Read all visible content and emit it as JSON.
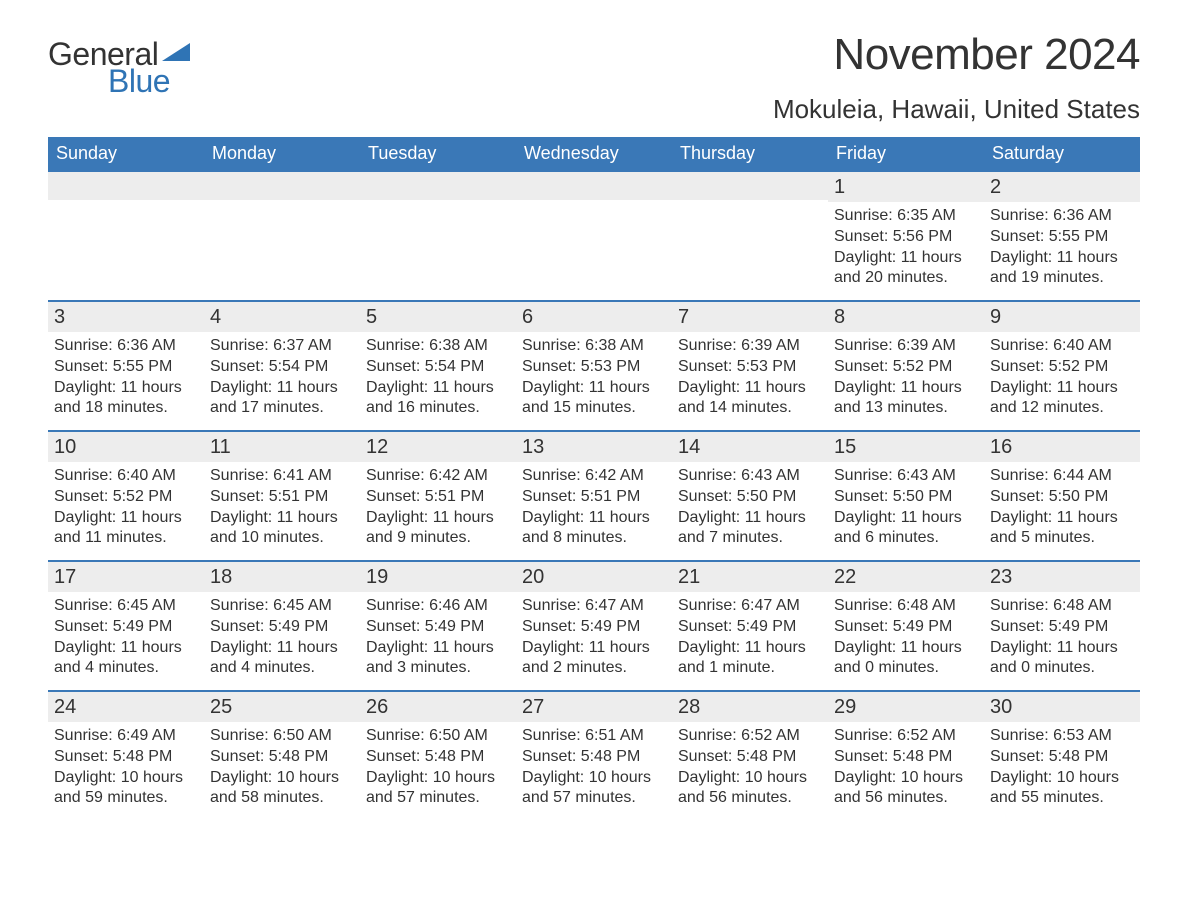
{
  "logo": {
    "word1": "General",
    "word2": "Blue",
    "tri_color": "#2f74b5",
    "text_color": "#333333",
    "blue_color": "#2f74b5"
  },
  "title": "November 2024",
  "location": "Mokuleia, Hawaii, United States",
  "colors": {
    "header_bg": "#3a78b7",
    "header_text": "#ffffff",
    "daynum_bg": "#ededed",
    "body_text": "#333333",
    "row_border": "#3a78b7",
    "background": "#ffffff"
  },
  "weekdays": [
    "Sunday",
    "Monday",
    "Tuesday",
    "Wednesday",
    "Thursday",
    "Friday",
    "Saturday"
  ],
  "weeks": [
    [
      {
        "day": "",
        "sunrise": "",
        "sunset": "",
        "daylight": ""
      },
      {
        "day": "",
        "sunrise": "",
        "sunset": "",
        "daylight": ""
      },
      {
        "day": "",
        "sunrise": "",
        "sunset": "",
        "daylight": ""
      },
      {
        "day": "",
        "sunrise": "",
        "sunset": "",
        "daylight": ""
      },
      {
        "day": "",
        "sunrise": "",
        "sunset": "",
        "daylight": ""
      },
      {
        "day": "1",
        "sunrise": "Sunrise: 6:35 AM",
        "sunset": "Sunset: 5:56 PM",
        "daylight": "Daylight: 11 hours and 20 minutes."
      },
      {
        "day": "2",
        "sunrise": "Sunrise: 6:36 AM",
        "sunset": "Sunset: 5:55 PM",
        "daylight": "Daylight: 11 hours and 19 minutes."
      }
    ],
    [
      {
        "day": "3",
        "sunrise": "Sunrise: 6:36 AM",
        "sunset": "Sunset: 5:55 PM",
        "daylight": "Daylight: 11 hours and 18 minutes."
      },
      {
        "day": "4",
        "sunrise": "Sunrise: 6:37 AM",
        "sunset": "Sunset: 5:54 PM",
        "daylight": "Daylight: 11 hours and 17 minutes."
      },
      {
        "day": "5",
        "sunrise": "Sunrise: 6:38 AM",
        "sunset": "Sunset: 5:54 PM",
        "daylight": "Daylight: 11 hours and 16 minutes."
      },
      {
        "day": "6",
        "sunrise": "Sunrise: 6:38 AM",
        "sunset": "Sunset: 5:53 PM",
        "daylight": "Daylight: 11 hours and 15 minutes."
      },
      {
        "day": "7",
        "sunrise": "Sunrise: 6:39 AM",
        "sunset": "Sunset: 5:53 PM",
        "daylight": "Daylight: 11 hours and 14 minutes."
      },
      {
        "day": "8",
        "sunrise": "Sunrise: 6:39 AM",
        "sunset": "Sunset: 5:52 PM",
        "daylight": "Daylight: 11 hours and 13 minutes."
      },
      {
        "day": "9",
        "sunrise": "Sunrise: 6:40 AM",
        "sunset": "Sunset: 5:52 PM",
        "daylight": "Daylight: 11 hours and 12 minutes."
      }
    ],
    [
      {
        "day": "10",
        "sunrise": "Sunrise: 6:40 AM",
        "sunset": "Sunset: 5:52 PM",
        "daylight": "Daylight: 11 hours and 11 minutes."
      },
      {
        "day": "11",
        "sunrise": "Sunrise: 6:41 AM",
        "sunset": "Sunset: 5:51 PM",
        "daylight": "Daylight: 11 hours and 10 minutes."
      },
      {
        "day": "12",
        "sunrise": "Sunrise: 6:42 AM",
        "sunset": "Sunset: 5:51 PM",
        "daylight": "Daylight: 11 hours and 9 minutes."
      },
      {
        "day": "13",
        "sunrise": "Sunrise: 6:42 AM",
        "sunset": "Sunset: 5:51 PM",
        "daylight": "Daylight: 11 hours and 8 minutes."
      },
      {
        "day": "14",
        "sunrise": "Sunrise: 6:43 AM",
        "sunset": "Sunset: 5:50 PM",
        "daylight": "Daylight: 11 hours and 7 minutes."
      },
      {
        "day": "15",
        "sunrise": "Sunrise: 6:43 AM",
        "sunset": "Sunset: 5:50 PM",
        "daylight": "Daylight: 11 hours and 6 minutes."
      },
      {
        "day": "16",
        "sunrise": "Sunrise: 6:44 AM",
        "sunset": "Sunset: 5:50 PM",
        "daylight": "Daylight: 11 hours and 5 minutes."
      }
    ],
    [
      {
        "day": "17",
        "sunrise": "Sunrise: 6:45 AM",
        "sunset": "Sunset: 5:49 PM",
        "daylight": "Daylight: 11 hours and 4 minutes."
      },
      {
        "day": "18",
        "sunrise": "Sunrise: 6:45 AM",
        "sunset": "Sunset: 5:49 PM",
        "daylight": "Daylight: 11 hours and 4 minutes."
      },
      {
        "day": "19",
        "sunrise": "Sunrise: 6:46 AM",
        "sunset": "Sunset: 5:49 PM",
        "daylight": "Daylight: 11 hours and 3 minutes."
      },
      {
        "day": "20",
        "sunrise": "Sunrise: 6:47 AM",
        "sunset": "Sunset: 5:49 PM",
        "daylight": "Daylight: 11 hours and 2 minutes."
      },
      {
        "day": "21",
        "sunrise": "Sunrise: 6:47 AM",
        "sunset": "Sunset: 5:49 PM",
        "daylight": "Daylight: 11 hours and 1 minute."
      },
      {
        "day": "22",
        "sunrise": "Sunrise: 6:48 AM",
        "sunset": "Sunset: 5:49 PM",
        "daylight": "Daylight: 11 hours and 0 minutes."
      },
      {
        "day": "23",
        "sunrise": "Sunrise: 6:48 AM",
        "sunset": "Sunset: 5:49 PM",
        "daylight": "Daylight: 11 hours and 0 minutes."
      }
    ],
    [
      {
        "day": "24",
        "sunrise": "Sunrise: 6:49 AM",
        "sunset": "Sunset: 5:48 PM",
        "daylight": "Daylight: 10 hours and 59 minutes."
      },
      {
        "day": "25",
        "sunrise": "Sunrise: 6:50 AM",
        "sunset": "Sunset: 5:48 PM",
        "daylight": "Daylight: 10 hours and 58 minutes."
      },
      {
        "day": "26",
        "sunrise": "Sunrise: 6:50 AM",
        "sunset": "Sunset: 5:48 PM",
        "daylight": "Daylight: 10 hours and 57 minutes."
      },
      {
        "day": "27",
        "sunrise": "Sunrise: 6:51 AM",
        "sunset": "Sunset: 5:48 PM",
        "daylight": "Daylight: 10 hours and 57 minutes."
      },
      {
        "day": "28",
        "sunrise": "Sunrise: 6:52 AM",
        "sunset": "Sunset: 5:48 PM",
        "daylight": "Daylight: 10 hours and 56 minutes."
      },
      {
        "day": "29",
        "sunrise": "Sunrise: 6:52 AM",
        "sunset": "Sunset: 5:48 PM",
        "daylight": "Daylight: 10 hours and 56 minutes."
      },
      {
        "day": "30",
        "sunrise": "Sunrise: 6:53 AM",
        "sunset": "Sunset: 5:48 PM",
        "daylight": "Daylight: 10 hours and 55 minutes."
      }
    ]
  ]
}
